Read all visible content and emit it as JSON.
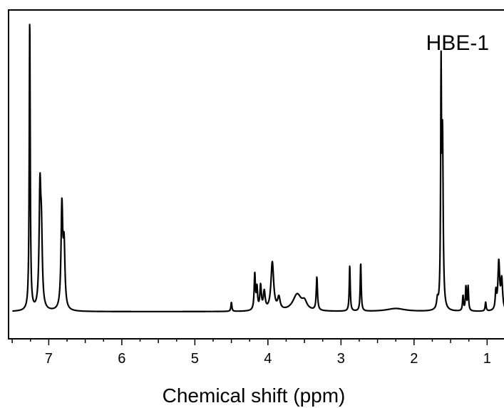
{
  "chart_data": {
    "type": "line",
    "title": "",
    "annotation": "HBE-1",
    "xlabel": "Chemical shift (ppm)",
    "ylabel": "",
    "xlim": [
      7.55,
      0.72
    ],
    "x_reversed": true,
    "ylim": [
      -0.09,
      1.0
    ],
    "grid": false,
    "legend": "none",
    "x_ticks": [
      "7",
      "6",
      "5",
      "4",
      "3",
      "2",
      "1"
    ],
    "line_color": "#000000",
    "baseline": 0,
    "peaks": [
      {
        "x": 7.26,
        "height": 0.97,
        "width": 0.008
      },
      {
        "x": 7.12,
        "height": 0.38,
        "width": 0.014
      },
      {
        "x": 7.1,
        "height": 0.22,
        "width": 0.014
      },
      {
        "x": 6.82,
        "height": 0.34,
        "width": 0.014
      },
      {
        "x": 6.79,
        "height": 0.2,
        "width": 0.014
      },
      {
        "x": 4.5,
        "height": 0.03,
        "width": 0.008
      },
      {
        "x": 4.18,
        "height": 0.12,
        "width": 0.01
      },
      {
        "x": 4.15,
        "height": 0.07,
        "width": 0.01
      },
      {
        "x": 4.1,
        "height": 0.08,
        "width": 0.012
      },
      {
        "x": 4.05,
        "height": 0.06,
        "width": 0.015
      },
      {
        "x": 3.94,
        "height": 0.16,
        "width": 0.022
      },
      {
        "x": 3.85,
        "height": 0.04,
        "width": 0.02
      },
      {
        "x": 3.6,
        "height": 0.055,
        "width": 0.07
      },
      {
        "x": 3.5,
        "height": 0.025,
        "width": 0.04
      },
      {
        "x": 3.33,
        "height": 0.11,
        "width": 0.01
      },
      {
        "x": 2.88,
        "height": 0.15,
        "width": 0.008
      },
      {
        "x": 2.73,
        "height": 0.16,
        "width": 0.008
      },
      {
        "x": 2.25,
        "height": 0.01,
        "width": 0.15
      },
      {
        "x": 1.68,
        "height": 0.03,
        "width": 0.012
      },
      {
        "x": 1.63,
        "height": 0.75,
        "width": 0.007
      },
      {
        "x": 1.61,
        "height": 0.55,
        "width": 0.01
      },
      {
        "x": 1.33,
        "height": 0.05,
        "width": 0.008
      },
      {
        "x": 1.29,
        "height": 0.08,
        "width": 0.008
      },
      {
        "x": 1.26,
        "height": 0.08,
        "width": 0.008
      },
      {
        "x": 1.02,
        "height": 0.03,
        "width": 0.008
      },
      {
        "x": 0.88,
        "height": 0.06,
        "width": 0.01
      },
      {
        "x": 0.84,
        "height": 0.16,
        "width": 0.014
      },
      {
        "x": 0.8,
        "height": 0.1,
        "width": 0.014
      }
    ]
  }
}
